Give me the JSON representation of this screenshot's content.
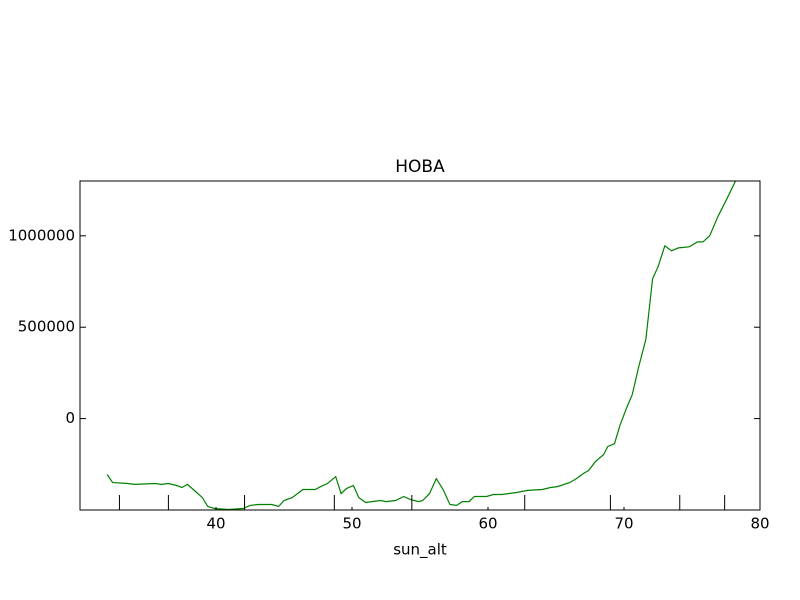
{
  "chart_data": {
    "type": "line",
    "title": "HOBA",
    "x_label": "sun_alt",
    "xlim": [
      30,
      80
    ],
    "ylim": [
      -500000,
      1300000
    ],
    "xticks": [
      40,
      50,
      60,
      70,
      80
    ],
    "xticks_minor": [
      32.9,
      36.5,
      42.1,
      48.7,
      54.4,
      62.7,
      69.0,
      74.1,
      77.4
    ],
    "yticks": [
      0,
      500000,
      1000000
    ],
    "grid": false,
    "series": [
      {
        "name": "sun_alt",
        "color": "#008000",
        "x": [
          32.0,
          32.4,
          33.5,
          34.0,
          35.5,
          36.0,
          36.5,
          37.1,
          37.5,
          37.9,
          38.5,
          39.0,
          39.4,
          39.9,
          40.9,
          42.0,
          42.5,
          43.1,
          44.1,
          44.6,
          45.0,
          45.6,
          46.4,
          47.3,
          47.7,
          48.2,
          48.8,
          49.2,
          49.6,
          50.1,
          50.5,
          51.0,
          52.1,
          52.5,
          53.2,
          53.8,
          54.3,
          54.9,
          55.2,
          55.7,
          56.2,
          56.7,
          57.2,
          57.7,
          58.1,
          58.6,
          59.0,
          59.9,
          60.4,
          61.0,
          61.5,
          62.1,
          62.9,
          64.0,
          64.6,
          65.1,
          66.0,
          66.5,
          67.0,
          67.4,
          67.9,
          68.5,
          68.8,
          69.3,
          69.7,
          70.2,
          70.6,
          71.1,
          71.6,
          72.1,
          72.5,
          73.0,
          73.5,
          74.0,
          74.8,
          75.4,
          75.8,
          76.3,
          76.9,
          77.6,
          78.2
        ],
        "values": [
          -306000,
          -350000,
          -355000,
          -360000,
          -355000,
          -360000,
          -355000,
          -366000,
          -377000,
          -360000,
          -399000,
          -432000,
          -481000,
          -492000,
          -497000,
          -492000,
          -475000,
          -470000,
          -470000,
          -481000,
          -448000,
          -432000,
          -388000,
          -388000,
          -372000,
          -355000,
          -317000,
          -410000,
          -382000,
          -366000,
          -432000,
          -459000,
          -448000,
          -454000,
          -448000,
          -426000,
          -443000,
          -454000,
          -448000,
          -410000,
          -328000,
          -388000,
          -470000,
          -475000,
          -454000,
          -454000,
          -426000,
          -426000,
          -415000,
          -415000,
          -410000,
          -404000,
          -393000,
          -388000,
          -377000,
          -372000,
          -350000,
          -328000,
          -301000,
          -284000,
          -235000,
          -197000,
          -153000,
          -137000,
          -38000,
          60000,
          131000,
          290000,
          432000,
          765000,
          830000,
          945000,
          918000,
          934000,
          940000,
          967000,
          967000,
          1000000,
          1104000,
          1208000,
          1300000
        ]
      }
    ]
  }
}
